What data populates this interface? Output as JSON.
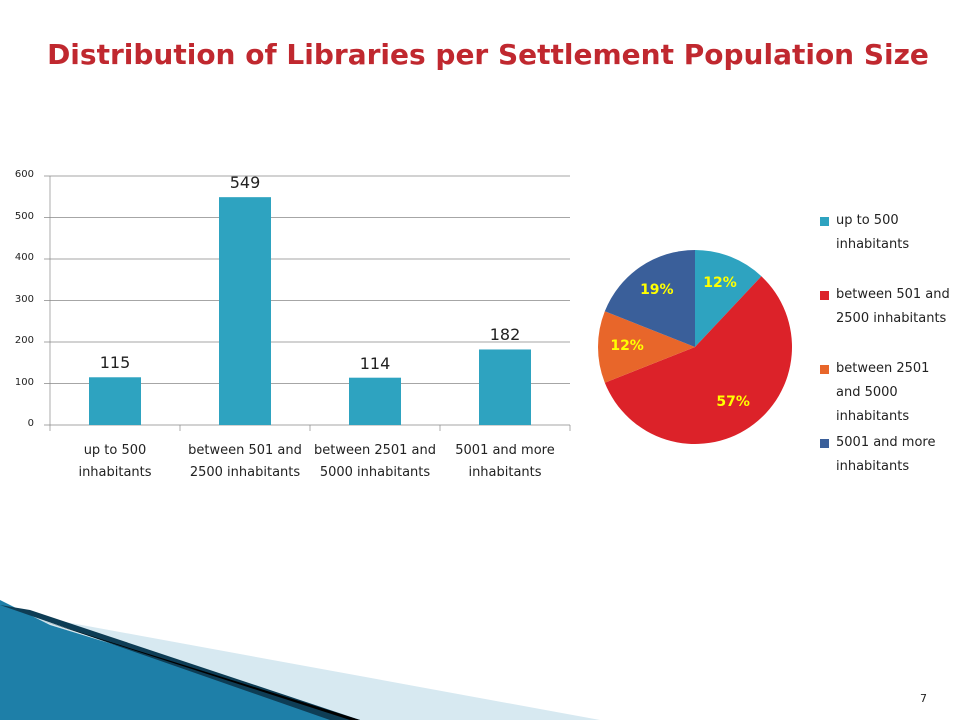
{
  "title": "Distribution of Libraries per Settlement Population Size",
  "page_number": "7",
  "chart_data": [
    {
      "type": "bar",
      "categories": [
        "up to 500 inhabitants",
        "between 501 and 2500 inhabitants",
        "between 2501 and 5000 inhabitants",
        "5001 and more inhabitants"
      ],
      "values": [
        115,
        549,
        114,
        182
      ],
      "color": "#2ea3c0",
      "ylim": [
        0,
        600
      ],
      "yticks": [
        0,
        100,
        200,
        300,
        400,
        500,
        600
      ],
      "grid": true
    },
    {
      "type": "pie",
      "categories": [
        "up to 500 inhabitants",
        "between 501 and 2500 inhabitants",
        "between 2501 and 5000 inhabitants",
        "5001 and more inhabitants"
      ],
      "values": [
        12,
        57,
        12,
        19
      ],
      "value_labels": [
        "12%",
        "57%",
        "12%",
        "19%"
      ],
      "colors": [
        "#2ea3c0",
        "#dc2229",
        "#e8662a",
        "#3a5f9a"
      ],
      "legend": "right"
    }
  ]
}
